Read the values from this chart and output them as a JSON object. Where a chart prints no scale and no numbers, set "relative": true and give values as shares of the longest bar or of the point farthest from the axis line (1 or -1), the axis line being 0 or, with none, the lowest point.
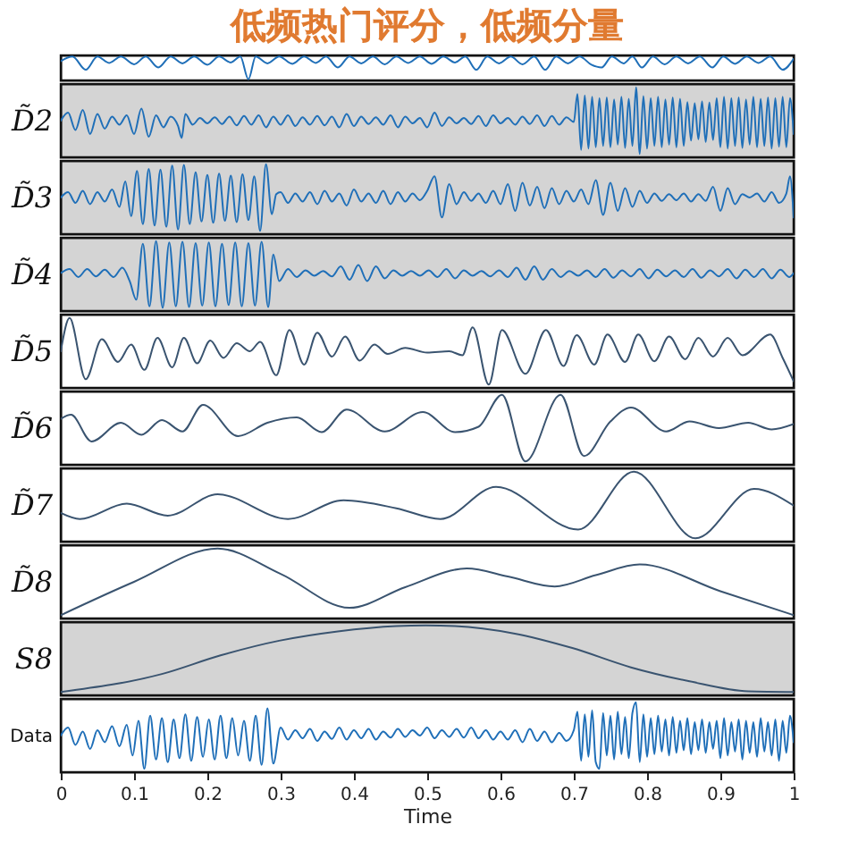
{
  "chart_data": [
    {
      "type": "line",
      "title": "低频热门评分，低频分量",
      "relative": true,
      "xlim": [
        0,
        1
      ],
      "tick_labels": false,
      "series": [
        {
          "color": "#1f6fb8",
          "x": [
            0,
            0.016,
            0.034,
            0.05,
            0.066,
            0.082,
            0.1,
            0.116,
            0.133,
            0.15,
            0.166,
            0.182,
            0.2,
            0.216,
            0.232,
            0.245,
            0.256,
            0.266,
            0.282,
            0.298,
            0.316,
            0.332,
            0.348,
            0.362,
            0.378,
            0.394,
            0.41,
            0.426,
            0.442,
            0.458,
            0.474,
            0.49,
            0.506,
            0.522,
            0.538,
            0.552,
            0.567,
            0.582,
            0.598,
            0.614,
            0.63,
            0.646,
            0.661,
            0.676,
            0.692,
            0.708,
            0.724,
            0.738,
            0.752,
            0.768,
            0.78,
            0.793,
            0.808,
            0.824,
            0.84,
            0.856,
            0.872,
            0.889,
            0.904,
            0.92,
            0.936,
            0.952,
            0.968,
            0.985,
            1
          ],
          "values": [
            0.8,
            1,
            0.42,
            1,
            0.72,
            1,
            0.66,
            1,
            0.52,
            1,
            0.7,
            1,
            0.64,
            1,
            0.74,
            1,
            0,
            1,
            0.7,
            1,
            0.68,
            1,
            0.72,
            1,
            0.52,
            1,
            0.7,
            1,
            0.66,
            1,
            0.72,
            1,
            0.68,
            1,
            0.74,
            1,
            0.42,
            1,
            0.7,
            1,
            0.66,
            1,
            0.42,
            1,
            0.7,
            1,
            0.64,
            0.52,
            1,
            0.7,
            1,
            0.52,
            1,
            0.66,
            1,
            0.7,
            1,
            0.52,
            1,
            0.68,
            1,
            0.72,
            1,
            0.42,
            0.9
          ]
        }
      ]
    },
    {
      "type": "line",
      "ylabel": "D̃2",
      "relative": true,
      "xlim": [
        0,
        1
      ],
      "tick_labels": false,
      "series": [
        {
          "color": "#1f6fb8",
          "x": [
            0,
            0.01,
            0.02,
            0.03,
            0.04,
            0.05,
            0.06,
            0.07,
            0.08,
            0.09,
            0.1,
            0.11,
            0.12,
            0.13,
            0.14,
            0.15,
            0.16,
            0.165,
            0.17,
            0.18,
            0.19,
            0.2,
            0.21,
            0.22,
            0.23,
            0.24,
            0.25,
            0.26,
            0.27,
            0.28,
            0.29,
            0.3,
            0.31,
            0.32,
            0.33,
            0.34,
            0.35,
            0.36,
            0.37,
            0.38,
            0.39,
            0.4,
            0.41,
            0.42,
            0.43,
            0.44,
            0.45,
            0.46,
            0.47,
            0.48,
            0.49,
            0.5,
            0.51,
            0.52,
            0.53,
            0.54,
            0.55,
            0.56,
            0.57,
            0.58,
            0.59,
            0.6,
            0.61,
            0.62,
            0.63,
            0.64,
            0.65,
            0.66,
            0.67,
            0.68,
            0.69,
            0.7,
            0.705,
            0.71,
            0.715,
            0.72,
            0.725,
            0.73,
            0.735,
            0.74,
            0.745,
            0.75,
            0.755,
            0.76,
            0.765,
            0.77,
            0.775,
            0.78,
            0.785,
            0.79,
            0.795,
            0.8,
            0.805,
            0.81,
            0.815,
            0.82,
            0.825,
            0.83,
            0.835,
            0.84,
            0.845,
            0.85,
            0.855,
            0.86,
            0.865,
            0.87,
            0.875,
            0.88,
            0.885,
            0.89,
            0.895,
            0.9,
            0.905,
            0.91,
            0.915,
            0.92,
            0.925,
            0.93,
            0.935,
            0.94,
            0.945,
            0.95,
            0.955,
            0.96,
            0.965,
            0.97,
            0.975,
            0.98,
            0.985,
            0.99,
            0.995,
            1
          ],
          "values": [
            0.5,
            0.62,
            0.36,
            0.66,
            0.3,
            0.6,
            0.38,
            0.56,
            0.44,
            0.58,
            0.3,
            0.68,
            0.26,
            0.58,
            0.4,
            0.56,
            0.42,
            0.24,
            0.6,
            0.44,
            0.54,
            0.46,
            0.55,
            0.45,
            0.56,
            0.43,
            0.57,
            0.44,
            0.58,
            0.4,
            0.56,
            0.44,
            0.58,
            0.42,
            0.55,
            0.44,
            0.57,
            0.43,
            0.56,
            0.4,
            0.6,
            0.42,
            0.56,
            0.45,
            0.55,
            0.44,
            0.58,
            0.4,
            0.56,
            0.46,
            0.54,
            0.4,
            0.62,
            0.42,
            0.55,
            0.46,
            0.54,
            0.45,
            0.57,
            0.42,
            0.58,
            0.46,
            0.54,
            0.44,
            0.56,
            0.45,
            0.58,
            0.42,
            0.57,
            0.44,
            0.55,
            0.48,
            0.9,
            0.06,
            0.88,
            0.08,
            0.86,
            0.1,
            0.84,
            0.12,
            0.85,
            0.1,
            0.82,
            0.14,
            0.86,
            0.09,
            0.83,
            0.12,
            1,
            0,
            0.87,
            0.08,
            0.84,
            0.12,
            0.86,
            0.1,
            0.82,
            0.14,
            0.85,
            0.1,
            0.83,
            0.12,
            0.78,
            0.2,
            0.76,
            0.22,
            0.79,
            0.18,
            0.77,
            0.21,
            0.84,
            0.1,
            0.86,
            0.08,
            0.84,
            0.12,
            0.85,
            0.09,
            0.82,
            0.14,
            0.86,
            0.1,
            0.83,
            0.12,
            0.85,
            0.08,
            0.84,
            0.11,
            0.86,
            0.1,
            0.84,
            0.3
          ]
        }
      ]
    },
    {
      "type": "line",
      "ylabel": "D̃3",
      "relative": true,
      "xlim": [
        0,
        1
      ],
      "tick_labels": false,
      "series": [
        {
          "color": "#1f6fb8",
          "x": [
            0,
            0.01,
            0.02,
            0.03,
            0.04,
            0.05,
            0.06,
            0.07,
            0.08,
            0.088,
            0.096,
            0.104,
            0.112,
            0.12,
            0.128,
            0.136,
            0.144,
            0.152,
            0.16,
            0.168,
            0.176,
            0.184,
            0.192,
            0.2,
            0.208,
            0.216,
            0.224,
            0.232,
            0.24,
            0.248,
            0.256,
            0.264,
            0.272,
            0.28,
            0.288,
            0.294,
            0.3,
            0.31,
            0.32,
            0.33,
            0.34,
            0.35,
            0.36,
            0.37,
            0.38,
            0.39,
            0.4,
            0.41,
            0.42,
            0.43,
            0.44,
            0.45,
            0.46,
            0.47,
            0.48,
            0.49,
            0.5,
            0.51,
            0.52,
            0.53,
            0.54,
            0.55,
            0.56,
            0.57,
            0.58,
            0.59,
            0.6,
            0.61,
            0.62,
            0.63,
            0.64,
            0.65,
            0.66,
            0.67,
            0.68,
            0.69,
            0.7,
            0.71,
            0.72,
            0.73,
            0.74,
            0.75,
            0.76,
            0.77,
            0.78,
            0.79,
            0.8,
            0.81,
            0.82,
            0.83,
            0.84,
            0.85,
            0.86,
            0.87,
            0.88,
            0.89,
            0.9,
            0.91,
            0.92,
            0.93,
            0.94,
            0.95,
            0.96,
            0.97,
            0.98,
            0.99,
            0.995,
            1
          ],
          "values": [
            0.5,
            0.58,
            0.42,
            0.6,
            0.4,
            0.58,
            0.44,
            0.62,
            0.36,
            0.74,
            0.22,
            0.9,
            0.1,
            0.93,
            0.08,
            0.92,
            0.06,
            0.98,
            0.02,
            0.99,
            0.1,
            0.88,
            0.14,
            0.84,
            0.12,
            0.86,
            0.15,
            0.83,
            0.13,
            0.85,
            0.16,
            0.82,
            0,
            1,
            0.25,
            0.55,
            0.58,
            0.42,
            0.56,
            0.44,
            0.58,
            0.4,
            0.6,
            0.44,
            0.56,
            0.38,
            0.62,
            0.44,
            0.56,
            0.42,
            0.6,
            0.4,
            0.58,
            0.44,
            0.56,
            0.46,
            0.6,
            0.82,
            0.2,
            0.7,
            0.4,
            0.58,
            0.45,
            0.56,
            0.42,
            0.6,
            0.4,
            0.7,
            0.3,
            0.72,
            0.38,
            0.66,
            0.34,
            0.64,
            0.4,
            0.6,
            0.44,
            0.62,
            0.4,
            0.76,
            0.24,
            0.72,
            0.3,
            0.64,
            0.36,
            0.6,
            0.42,
            0.56,
            0.45,
            0.55,
            0.46,
            0.56,
            0.44,
            0.55,
            0.45,
            0.66,
            0.3,
            0.64,
            0.4,
            0.55,
            0.5,
            0.56,
            0.44,
            0.58,
            0.42,
            0.56,
            0.82,
            0.2
          ]
        }
      ]
    },
    {
      "type": "line",
      "ylabel": "D̃4",
      "relative": true,
      "xlim": [
        0,
        1
      ],
      "tick_labels": false,
      "series": [
        {
          "color": "#1f6fb8",
          "x": [
            0,
            0.012,
            0.024,
            0.036,
            0.048,
            0.06,
            0.072,
            0.084,
            0.094,
            0.103,
            0.112,
            0.121,
            0.13,
            0.139,
            0.148,
            0.157,
            0.166,
            0.175,
            0.184,
            0.193,
            0.202,
            0.211,
            0.22,
            0.229,
            0.238,
            0.247,
            0.256,
            0.265,
            0.274,
            0.283,
            0.29,
            0.298,
            0.31,
            0.322,
            0.334,
            0.346,
            0.358,
            0.37,
            0.382,
            0.394,
            0.406,
            0.418,
            0.43,
            0.442,
            0.454,
            0.466,
            0.478,
            0.49,
            0.502,
            0.514,
            0.526,
            0.538,
            0.55,
            0.562,
            0.574,
            0.586,
            0.598,
            0.61,
            0.622,
            0.634,
            0.646,
            0.658,
            0.67,
            0.682,
            0.694,
            0.706,
            0.718,
            0.73,
            0.742,
            0.754,
            0.766,
            0.778,
            0.79,
            0.802,
            0.814,
            0.826,
            0.838,
            0.85,
            0.862,
            0.874,
            0.886,
            0.898,
            0.91,
            0.922,
            0.934,
            0.946,
            0.958,
            0.97,
            0.982,
            0.994,
            1
          ],
          "values": [
            0.52,
            0.58,
            0.46,
            0.58,
            0.47,
            0.57,
            0.46,
            0.6,
            0.4,
            0.12,
            0.96,
            0.02,
            1,
            0,
            0.98,
            0.02,
            0.99,
            0.01,
            0.97,
            0.03,
            0.98,
            0.02,
            0.96,
            0.04,
            0.98,
            0.02,
            0.97,
            0.03,
            0.99,
            0.01,
            0.8,
            0.4,
            0.58,
            0.46,
            0.56,
            0.48,
            0.55,
            0.47,
            0.62,
            0.42,
            0.64,
            0.4,
            0.62,
            0.44,
            0.56,
            0.48,
            0.55,
            0.48,
            0.56,
            0.46,
            0.58,
            0.44,
            0.56,
            0.48,
            0.55,
            0.47,
            0.56,
            0.46,
            0.6,
            0.42,
            0.62,
            0.42,
            0.58,
            0.46,
            0.55,
            0.48,
            0.56,
            0.46,
            0.58,
            0.45,
            0.56,
            0.47,
            0.58,
            0.44,
            0.57,
            0.47,
            0.56,
            0.46,
            0.58,
            0.45,
            0.56,
            0.47,
            0.58,
            0.44,
            0.57,
            0.46,
            0.58,
            0.44,
            0.57,
            0.46,
            0.52
          ]
        }
      ]
    },
    {
      "type": "line",
      "ylabel": "D̃5",
      "relative": true,
      "xlim": [
        0,
        1
      ],
      "tick_labels": false,
      "series": [
        {
          "color": "#3a5470",
          "x": [
            0,
            0.012,
            0.034,
            0.056,
            0.078,
            0.096,
            0.114,
            0.132,
            0.152,
            0.168,
            0.186,
            0.204,
            0.222,
            0.24,
            0.258,
            0.272,
            0.294,
            0.312,
            0.332,
            0.35,
            0.37,
            0.388,
            0.408,
            0.428,
            0.446,
            0.47,
            0.5,
            0.53,
            0.548,
            0.562,
            0.584,
            0.602,
            0.634,
            0.662,
            0.686,
            0.704,
            0.728,
            0.746,
            0.77,
            0.788,
            0.81,
            0.83,
            0.852,
            0.87,
            0.89,
            0.91,
            0.93,
            0.968,
            0.985,
            1
          ],
          "values": [
            0.5,
            1,
            0.08,
            0.68,
            0.34,
            0.6,
            0.22,
            0.7,
            0.26,
            0.7,
            0.32,
            0.66,
            0.4,
            0.62,
            0.5,
            0.64,
            0.14,
            0.82,
            0.3,
            0.78,
            0.42,
            0.72,
            0.36,
            0.6,
            0.46,
            0.55,
            0.48,
            0.5,
            0.44,
            0.86,
            0,
            0.82,
            0.16,
            0.82,
            0.28,
            0.74,
            0.3,
            0.75,
            0.34,
            0.75,
            0.35,
            0.72,
            0.38,
            0.7,
            0.42,
            0.7,
            0.44,
            0.75,
            0.4,
            0.05
          ]
        }
      ]
    },
    {
      "type": "line",
      "ylabel": "D̃6",
      "relative": true,
      "xlim": [
        0,
        1
      ],
      "tick_labels": false,
      "series": [
        {
          "color": "#3a5470",
          "x": [
            0,
            0.014,
            0.042,
            0.082,
            0.11,
            0.138,
            0.166,
            0.194,
            0.242,
            0.282,
            0.322,
            0.356,
            0.39,
            0.442,
            0.494,
            0.538,
            0.57,
            0.602,
            0.634,
            0.682,
            0.714,
            0.75,
            0.778,
            0.826,
            0.858,
            0.898,
            0.938,
            0.97,
            1
          ],
          "values": [
            0.64,
            0.7,
            0.3,
            0.58,
            0.4,
            0.62,
            0.45,
            0.85,
            0.38,
            0.58,
            0.66,
            0.44,
            0.78,
            0.45,
            0.74,
            0.44,
            0.52,
            1,
            0,
            1,
            0.08,
            0.6,
            0.81,
            0.45,
            0.6,
            0.5,
            0.58,
            0.48,
            0.56
          ]
        }
      ]
    },
    {
      "type": "line",
      "ylabel": "D̃7",
      "relative": true,
      "xlim": [
        0,
        1
      ],
      "tick_labels": false,
      "series": [
        {
          "color": "#3a5470",
          "x": [
            0,
            0.026,
            0.09,
            0.146,
            0.214,
            0.31,
            0.386,
            0.458,
            0.518,
            0.594,
            0.706,
            0.782,
            0.866,
            0.946,
            1
          ],
          "values": [
            0.38,
            0.29,
            0.52,
            0.34,
            0.66,
            0.29,
            0.57,
            0.45,
            0.29,
            0.77,
            0.13,
            1,
            0,
            0.74,
            0.49
          ]
        }
      ]
    },
    {
      "type": "line",
      "ylabel": "D̃8",
      "relative": true,
      "xlim": [
        0,
        1
      ],
      "tick_labels": false,
      "series": [
        {
          "color": "#3a5470",
          "x": [
            0,
            0.1,
            0.214,
            0.3,
            0.394,
            0.47,
            0.554,
            0.61,
            0.674,
            0.73,
            0.79,
            0.9,
            1
          ],
          "values": [
            0,
            0.5,
            1,
            0.62,
            0.11,
            0.42,
            0.7,
            0.58,
            0.43,
            0.6,
            0.76,
            0.36,
            0
          ]
        }
      ]
    },
    {
      "type": "line",
      "ylabel": "S8",
      "relative": true,
      "xlim": [
        0,
        1
      ],
      "tick_labels": false,
      "series": [
        {
          "color": "#3a5470",
          "x": [
            0,
            0.138,
            0.218,
            0.298,
            0.378,
            0.458,
            0.498,
            0.538,
            0.618,
            0.698,
            0.778,
            0.858,
            0.938,
            1
          ],
          "values": [
            0,
            0.27,
            0.55,
            0.77,
            0.91,
            0.99,
            1,
            0.99,
            0.88,
            0.66,
            0.37,
            0.16,
            0.01,
            0
          ]
        }
      ]
    },
    {
      "type": "line",
      "ylabel": "Data",
      "xlabel": "Time",
      "relative": true,
      "xlim": [
        0,
        1
      ],
      "xticks": [
        0,
        0.1,
        0.2,
        0.3,
        0.4,
        0.5,
        0.6,
        0.7,
        0.8,
        0.9,
        1
      ],
      "tick_labels": "x",
      "series": [
        {
          "color": "#1f6fb8",
          "x": [
            0,
            0.01,
            0.02,
            0.03,
            0.04,
            0.05,
            0.06,
            0.07,
            0.08,
            0.09,
            0.098,
            0.106,
            0.114,
            0.122,
            0.13,
            0.138,
            0.146,
            0.154,
            0.162,
            0.17,
            0.178,
            0.186,
            0.194,
            0.202,
            0.21,
            0.218,
            0.226,
            0.234,
            0.242,
            0.25,
            0.258,
            0.266,
            0.274,
            0.282,
            0.29,
            0.3,
            0.31,
            0.32,
            0.33,
            0.34,
            0.35,
            0.36,
            0.37,
            0.38,
            0.39,
            0.4,
            0.41,
            0.42,
            0.43,
            0.44,
            0.45,
            0.46,
            0.47,
            0.48,
            0.49,
            0.5,
            0.51,
            0.52,
            0.53,
            0.54,
            0.55,
            0.56,
            0.57,
            0.58,
            0.59,
            0.6,
            0.61,
            0.62,
            0.63,
            0.64,
            0.65,
            0.66,
            0.67,
            0.68,
            0.69,
            0.7,
            0.705,
            0.71,
            0.715,
            0.72,
            0.725,
            0.73,
            0.735,
            0.74,
            0.745,
            0.75,
            0.755,
            0.76,
            0.765,
            0.77,
            0.775,
            0.78,
            0.785,
            0.79,
            0.795,
            0.8,
            0.805,
            0.81,
            0.815,
            0.82,
            0.825,
            0.83,
            0.835,
            0.84,
            0.845,
            0.85,
            0.855,
            0.86,
            0.865,
            0.87,
            0.875,
            0.88,
            0.885,
            0.89,
            0.895,
            0.9,
            0.905,
            0.91,
            0.915,
            0.92,
            0.925,
            0.93,
            0.935,
            0.94,
            0.945,
            0.95,
            0.955,
            0.96,
            0.965,
            0.97,
            0.975,
            0.98,
            0.985,
            0.99,
            0.995,
            1
          ],
          "values": [
            0.5,
            0.62,
            0.36,
            0.56,
            0.3,
            0.58,
            0.4,
            0.64,
            0.34,
            0.66,
            0.2,
            0.72,
            0,
            0.8,
            0.14,
            0.76,
            0.1,
            0.74,
            0.16,
            0.82,
            0.12,
            0.78,
            0.18,
            0.74,
            0.14,
            0.8,
            0.16,
            0.76,
            0.2,
            0.72,
            0.12,
            0.8,
            0.06,
            0.91,
            0.08,
            0.62,
            0.44,
            0.58,
            0.46,
            0.6,
            0.42,
            0.56,
            0.45,
            0.62,
            0.44,
            0.58,
            0.46,
            0.6,
            0.44,
            0.56,
            0.47,
            0.6,
            0.48,
            0.58,
            0.5,
            0.62,
            0.46,
            0.58,
            0.48,
            0.6,
            0.47,
            0.62,
            0.46,
            0.58,
            0.44,
            0.56,
            0.44,
            0.58,
            0.4,
            0.6,
            0.42,
            0.56,
            0.4,
            0.54,
            0.42,
            0.58,
            0.86,
            0.12,
            0.82,
            0.18,
            0.88,
            0.1,
            0,
            0.84,
            0.2,
            0.8,
            0.14,
            0.86,
            0.22,
            0.78,
            0.16,
            0.84,
            1,
            0.1,
            0.82,
            0.18,
            0.76,
            0.22,
            0.8,
            0.26,
            0.74,
            0.2,
            0.78,
            0.24,
            0.72,
            0.28,
            0.76,
            0.22,
            0.7,
            0.28,
            0.74,
            0.24,
            0.7,
            0.3,
            0.72,
            0.16,
            0.76,
            0.2,
            0.7,
            0.26,
            0.74,
            0.14,
            0.72,
            0.24,
            0.7,
            0.18,
            0.76,
            0.26,
            0.7,
            0.2,
            0.74,
            0.12,
            0.72,
            0.24,
            0.8,
            0.4
          ]
        }
      ]
    }
  ]
}
